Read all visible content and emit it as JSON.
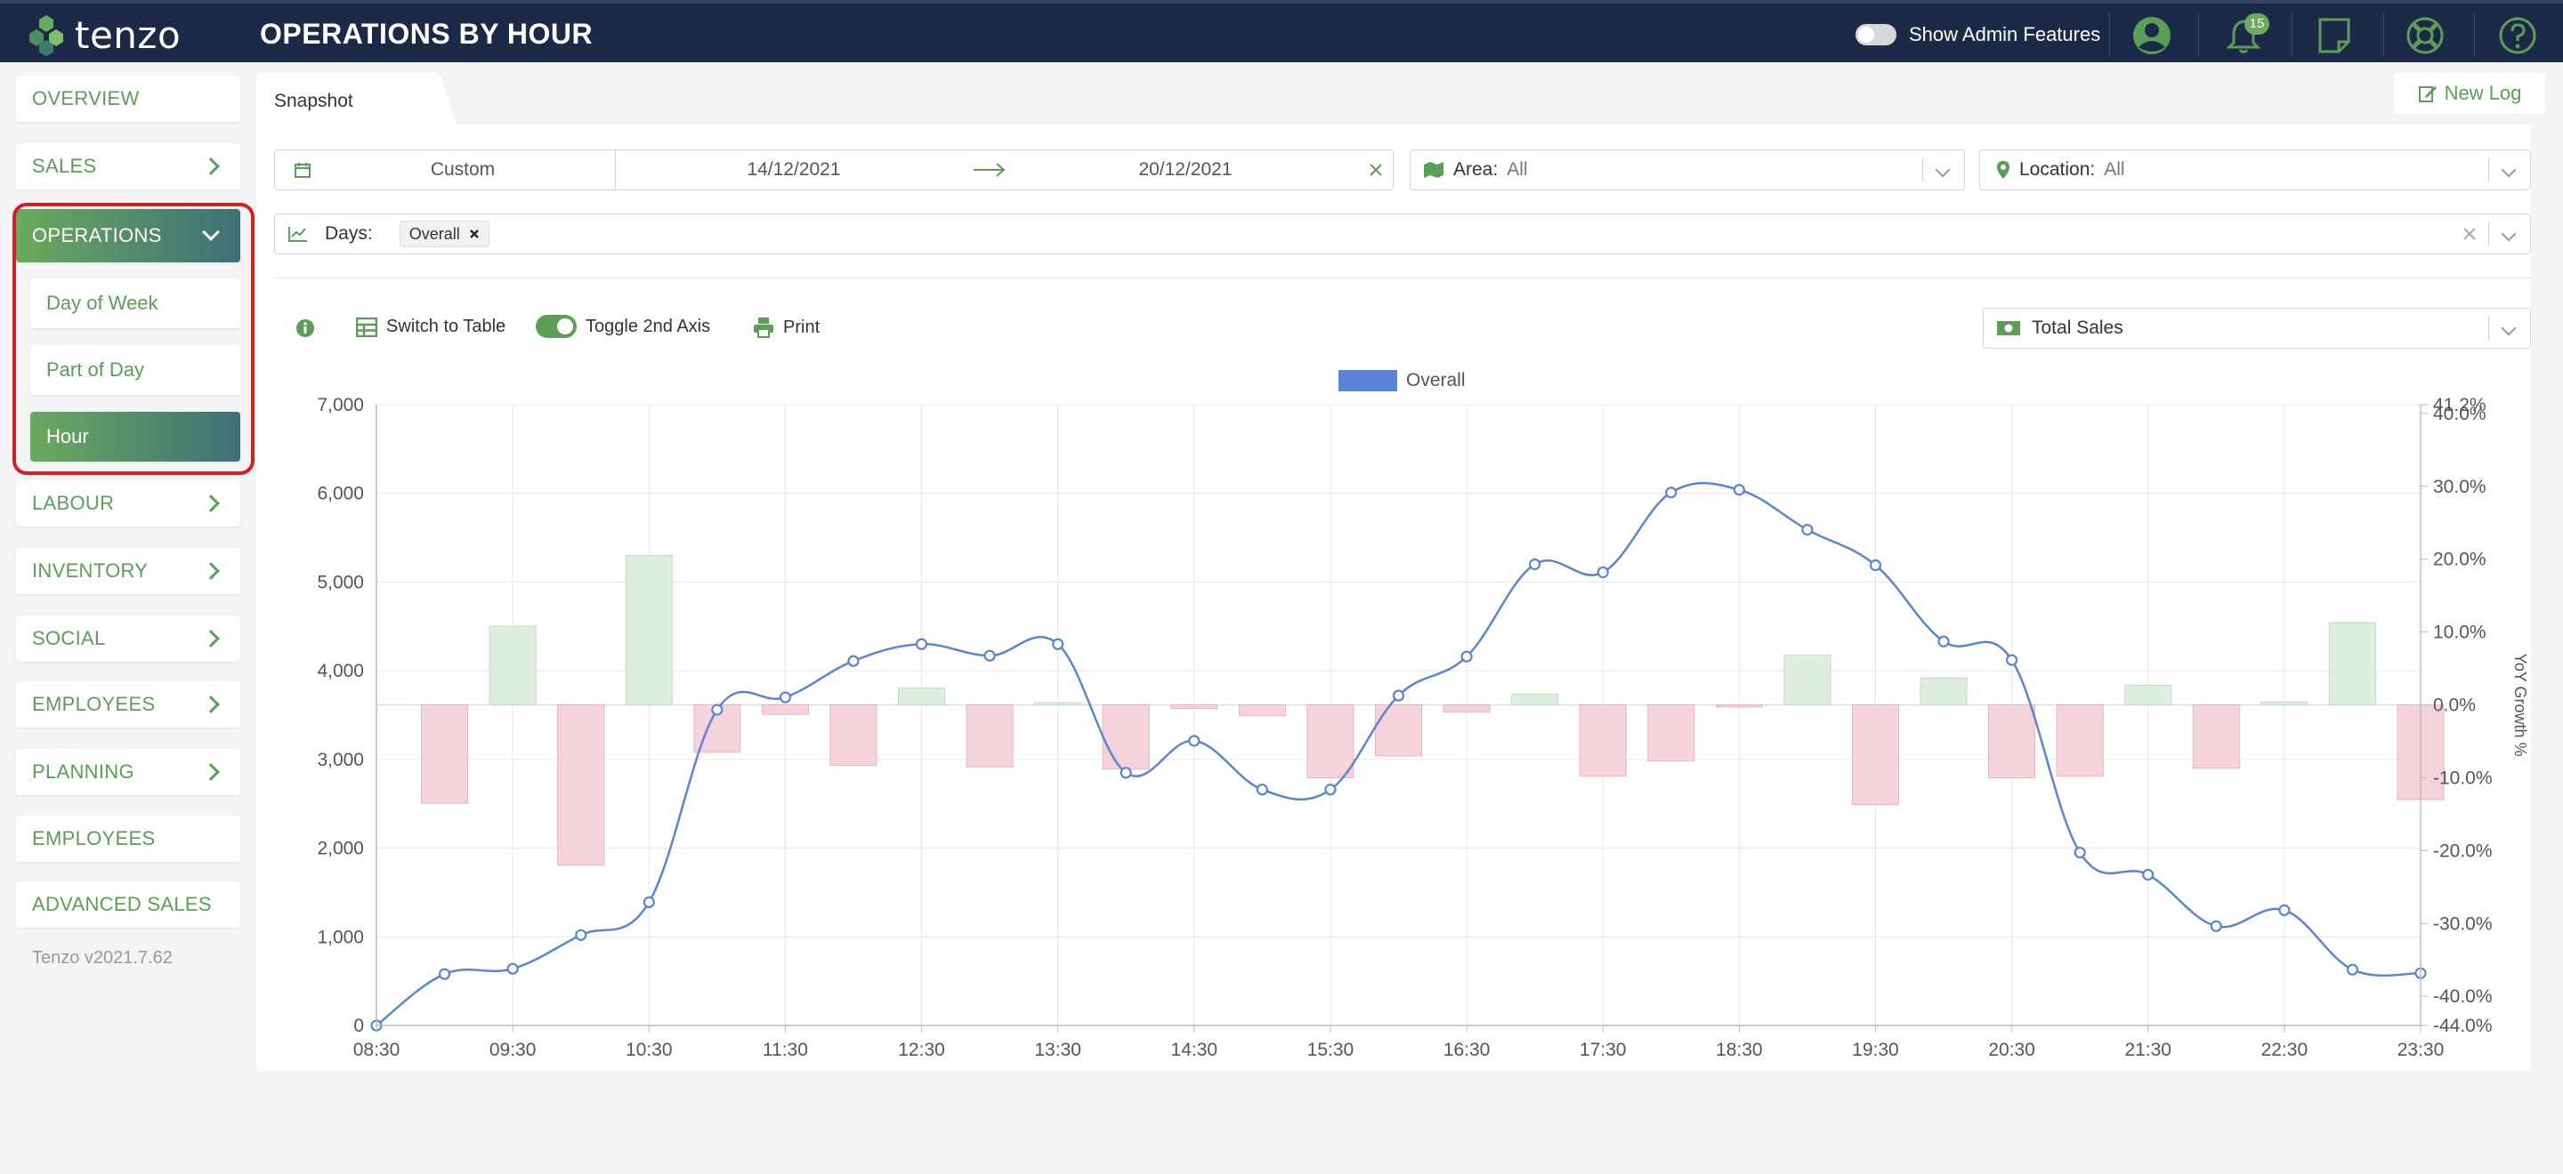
{
  "app": {
    "logo_text": "tenzo",
    "page_title": "OPERATIONS BY HOUR",
    "admin_toggle_label": "Show Admin Features",
    "notification_count": "15",
    "version": "Tenzo v2021.7.62"
  },
  "sidebar": {
    "items": [
      {
        "label": "OVERVIEW",
        "has_chevron": false
      },
      {
        "label": "SALES",
        "has_chevron": true
      },
      {
        "label": "OPERATIONS",
        "has_chevron": true,
        "expanded": true
      },
      {
        "label": "LABOUR",
        "has_chevron": true
      },
      {
        "label": "INVENTORY",
        "has_chevron": true
      },
      {
        "label": "SOCIAL",
        "has_chevron": true
      },
      {
        "label": "EMPLOYEES",
        "has_chevron": true
      },
      {
        "label": "PLANNING",
        "has_chevron": true
      },
      {
        "label": "EMPLOYEES",
        "has_chevron": false
      },
      {
        "label": "ADVANCED SALES",
        "has_chevron": false
      }
    ],
    "sub_items": [
      {
        "label": "Day of Week"
      },
      {
        "label": "Part of Day"
      },
      {
        "label": "Hour",
        "active": true
      }
    ]
  },
  "tabs": {
    "snapshot": "Snapshot",
    "new_log": "New Log"
  },
  "filters": {
    "date_mode": "Custom",
    "date_from": "14/12/2021",
    "date_to": "20/12/2021",
    "area_label": "Area:",
    "area_value": "All",
    "location_label": "Location:",
    "location_value": "All",
    "days_label": "Days:",
    "days_chip": "Overall"
  },
  "toolbar": {
    "switch_to_table": "Switch to Table",
    "toggle_axis": "Toggle 2nd Axis",
    "print": "Print",
    "metric_select": "Total Sales"
  },
  "colors": {
    "topbar": "#1d2a47",
    "accent_green": "#5a9e57",
    "line_blue": "#5b84d6",
    "bar_positive": "#dcefdf",
    "bar_negative": "#f5d3da"
  },
  "chart_data": {
    "type": "line",
    "legend": [
      "Overall"
    ],
    "x": [
      "08:30",
      "09:00",
      "09:30",
      "10:00",
      "10:30",
      "11:00",
      "11:30",
      "12:00",
      "12:30",
      "13:00",
      "13:30",
      "14:00",
      "14:30",
      "15:00",
      "15:30",
      "16:00",
      "16:30",
      "17:00",
      "17:30",
      "18:00",
      "18:30",
      "19:00",
      "19:30",
      "20:00",
      "20:30",
      "21:00",
      "21:30",
      "22:00",
      "22:30",
      "23:00",
      "23:30"
    ],
    "xtick_labels": [
      "08:30",
      "09:30",
      "10:30",
      "11:30",
      "12:30",
      "13:30",
      "14:30",
      "15:30",
      "16:30",
      "17:30",
      "18:30",
      "19:30",
      "20:30",
      "21:30",
      "22:30",
      "23:30"
    ],
    "yticks_left": [
      "0",
      "1,000",
      "2,000",
      "3,000",
      "4,000",
      "5,000",
      "6,000",
      "7,000"
    ],
    "yticks_right": [
      "41.2%",
      "40.0%",
      "30.0%",
      "20.0%",
      "10.0%",
      "0.0%",
      "-10.0%",
      "-20.0%",
      "-30.0%",
      "-40.0%",
      "-44.0%"
    ],
    "ylabel_right": "YoY Growth %",
    "ylim": [
      0,
      7000
    ],
    "y2lim": [
      -44,
      41.2
    ],
    "series": [
      {
        "name": "Overall",
        "kind": "line",
        "axis": "left",
        "values": [
          0,
          580,
          640,
          1020,
          1390,
          3560,
          3700,
          4110,
          4300,
          4170,
          4300,
          2850,
          3210,
          2660,
          2660,
          3720,
          4160,
          5200,
          5110,
          6010,
          6040,
          5590,
          5190,
          4330,
          4120,
          1950,
          1700,
          1120,
          1300,
          630,
          590
        ]
      },
      {
        "axis": "right",
        "kind": "bar",
        "values": [
          null,
          -13.5,
          10.8,
          -22.0,
          20.5,
          -6.5,
          -1.3,
          -8.3,
          2.3,
          -8.5,
          0.3,
          -8.8,
          -0.5,
          -1.5,
          -10.0,
          -7.0,
          -1.0,
          1.5,
          -9.8,
          -7.7,
          -0.3,
          6.8,
          -13.7,
          3.7,
          -10.0,
          -9.8,
          2.7,
          -8.7,
          0.4,
          11.3,
          -13.0
        ]
      }
    ]
  }
}
